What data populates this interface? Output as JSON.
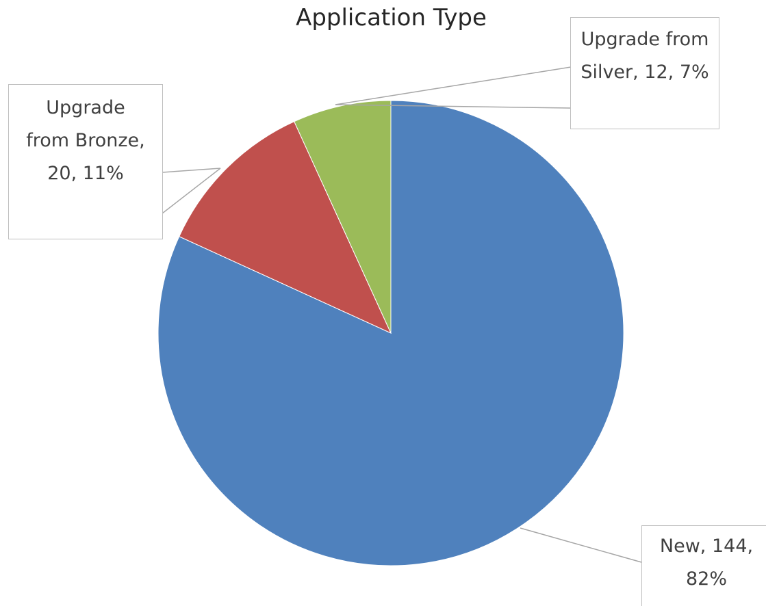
{
  "chart_data": {
    "type": "pie",
    "title": "Application Type",
    "values": [
      144,
      20,
      12
    ],
    "value_labels": [
      "New, 144, 82%",
      "Upgrade from Bronze, 20, 11%",
      "Upgrade from Silver, 12, 7%"
    ],
    "colors": [
      "#4f81bd",
      "#c0504d",
      "#9bbb59"
    ]
  }
}
